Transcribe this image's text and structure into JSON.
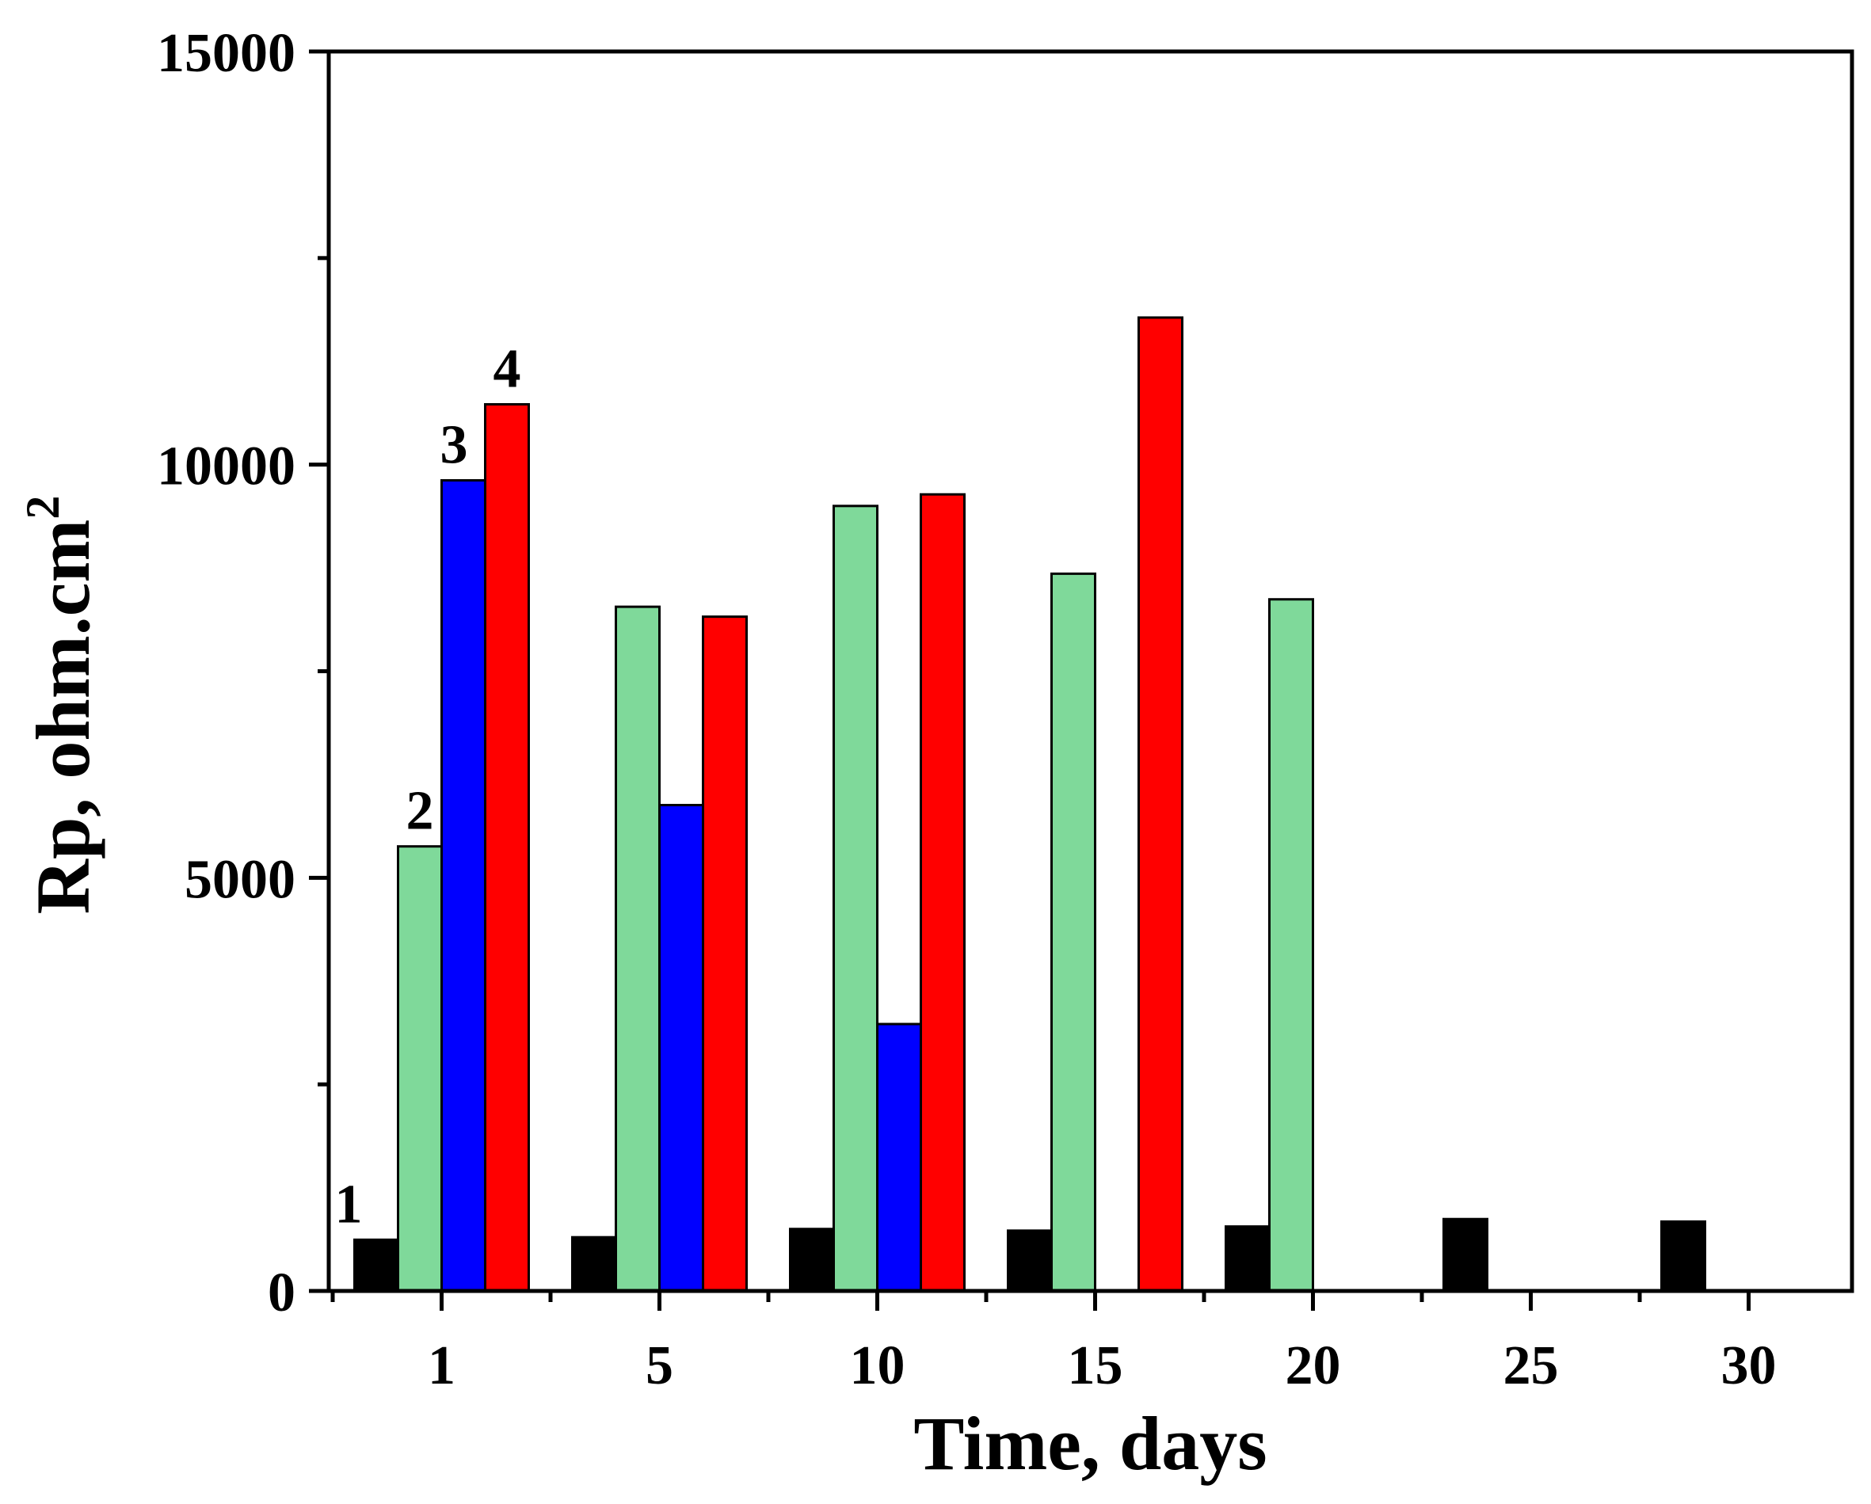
{
  "chart_data": {
    "type": "bar",
    "title": "",
    "xlabel": "Time, days",
    "ylabel": "Rp, ohm.cm",
    "ylabel_superscript": "2",
    "categories": [
      "1",
      "5",
      "10",
      "15",
      "20",
      "25",
      "30"
    ],
    "ylim": [
      0,
      15000
    ],
    "yticks": [
      0,
      5000,
      10000,
      15000
    ],
    "yminor_step": 2500,
    "series": [
      {
        "name": "1",
        "label": "1",
        "color": "#000000",
        "values": [
          620,
          650,
          750,
          730,
          780,
          870,
          840
        ]
      },
      {
        "name": "2",
        "label": "2",
        "color": "#7fd99a",
        "values": [
          5380,
          8280,
          9500,
          8680,
          8370,
          null,
          null
        ]
      },
      {
        "name": "3",
        "label": "3",
        "color": "#0000ff",
        "values": [
          9810,
          5880,
          3230,
          null,
          null,
          null,
          null
        ]
      },
      {
        "name": "4",
        "label": "4",
        "color": "#ff0000",
        "values": [
          10730,
          8160,
          9640,
          11780,
          null,
          null,
          null
        ]
      }
    ]
  }
}
